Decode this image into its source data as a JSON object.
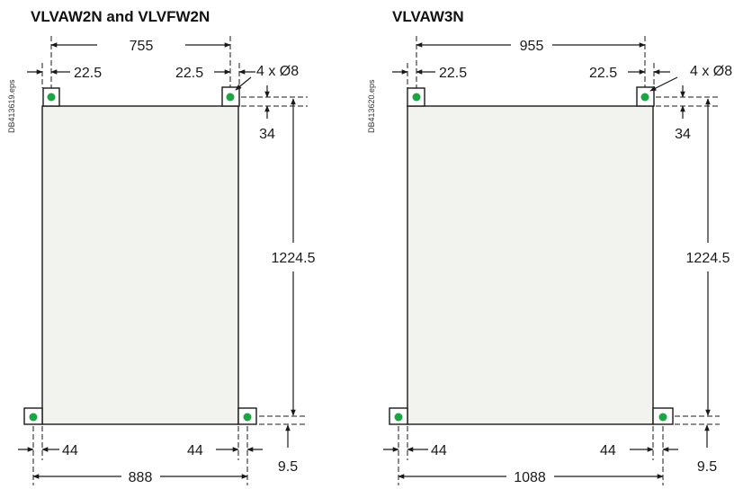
{
  "colors": {
    "body_fill": "#f2f2ee",
    "hole": "#1aa642",
    "line": "#1a1a1a"
  },
  "left": {
    "title": "VLVAW2N and VLVFW2N",
    "ref": "DB413619.eps",
    "hole_spacing": "755",
    "top_offset_left": "22.5",
    "top_offset_right": "22.5",
    "holes": "4 x Ø8",
    "top_margin": "34",
    "height": "1224.5",
    "bottom_margin": "9.5",
    "bottom_offset_left": "44",
    "bottom_offset_right": "44",
    "width": "888"
  },
  "right": {
    "title": "VLVAW3N",
    "ref": "DB413620.eps",
    "hole_spacing": "955",
    "top_offset_left": "22.5",
    "top_offset_right": "22.5",
    "holes": "4 x Ø8",
    "top_margin": "34",
    "height": "1224.5",
    "bottom_margin": "9.5",
    "bottom_offset_left": "44",
    "bottom_offset_right": "44",
    "width": "1088"
  }
}
